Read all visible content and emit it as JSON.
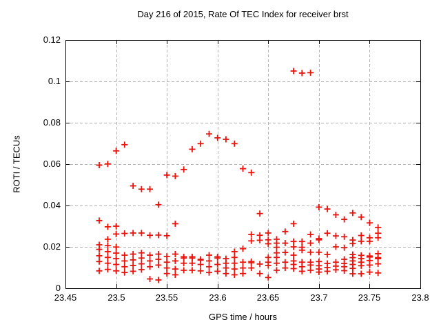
{
  "title": "Day 216 of 2015, Rate Of TEC Index for receiver brst",
  "colors": {
    "marker": "#e8130c",
    "grid": "#b3b3b3",
    "border": "#000000",
    "background": "#ffffff",
    "text": "#000000"
  },
  "chart_data": {
    "type": "scatter",
    "title": "Day 216 of 2015, Rate Of TEC Index for receiver brst",
    "xlabel": "GPS time / hours",
    "ylabel": "ROTI / TECUs",
    "xlim": [
      23.45,
      23.8
    ],
    "ylim": [
      0,
      0.12
    ],
    "xticks": [
      23.45,
      23.5,
      23.55,
      23.6,
      23.65,
      23.7,
      23.75,
      23.8
    ],
    "xtick_labels": [
      "23.45",
      "23.5",
      "23.55",
      "23.6",
      "23.65",
      "23.7",
      "23.75",
      "23.8"
    ],
    "yticks": [
      0,
      0.02,
      0.04,
      0.06,
      0.08,
      0.1,
      0.12
    ],
    "ytick_labels": [
      "0",
      "0.02",
      "0.04",
      "0.06",
      "0.08",
      "0.1",
      "0.12"
    ],
    "grid": true,
    "legend": false,
    "marker": "plus",
    "series_name": "ROTI",
    "points": [
      [
        23.4833,
        0.0595
      ],
      [
        23.4833,
        0.0327
      ],
      [
        23.4833,
        0.021
      ],
      [
        23.4833,
        0.0188
      ],
      [
        23.4833,
        0.0157
      ],
      [
        23.4833,
        0.0129
      ],
      [
        23.4833,
        0.0084
      ],
      [
        23.4917,
        0.0601
      ],
      [
        23.4917,
        0.0297
      ],
      [
        23.4917,
        0.0237
      ],
      [
        23.4917,
        0.0206
      ],
      [
        23.4917,
        0.0177
      ],
      [
        23.4917,
        0.0149
      ],
      [
        23.4917,
        0.0121
      ],
      [
        23.4917,
        0.0091
      ],
      [
        23.5,
        0.0664
      ],
      [
        23.5,
        0.03
      ],
      [
        23.5,
        0.0262
      ],
      [
        23.5,
        0.0199
      ],
      [
        23.5,
        0.017
      ],
      [
        23.5,
        0.0143
      ],
      [
        23.5,
        0.0115
      ],
      [
        23.5,
        0.0084
      ],
      [
        23.5083,
        0.0694
      ],
      [
        23.5083,
        0.0265
      ],
      [
        23.5083,
        0.016
      ],
      [
        23.5083,
        0.0132
      ],
      [
        23.5083,
        0.0104
      ],
      [
        23.5083,
        0.0076
      ],
      [
        23.5167,
        0.0495
      ],
      [
        23.5167,
        0.0267
      ],
      [
        23.5167,
        0.0165
      ],
      [
        23.5167,
        0.0137
      ],
      [
        23.5167,
        0.011
      ],
      [
        23.5167,
        0.0082
      ],
      [
        23.525,
        0.0479
      ],
      [
        23.525,
        0.0267
      ],
      [
        23.525,
        0.0171
      ],
      [
        23.525,
        0.0146
      ],
      [
        23.525,
        0.0118
      ],
      [
        23.525,
        0.009
      ],
      [
        23.5333,
        0.0479
      ],
      [
        23.5333,
        0.0256
      ],
      [
        23.5333,
        0.016
      ],
      [
        23.5333,
        0.0132
      ],
      [
        23.5333,
        0.0104
      ],
      [
        23.5333,
        0.0045
      ],
      [
        23.5417,
        0.0404
      ],
      [
        23.5417,
        0.0257
      ],
      [
        23.5417,
        0.0165
      ],
      [
        23.5417,
        0.014
      ],
      [
        23.5417,
        0.0112
      ],
      [
        23.5417,
        0.004
      ],
      [
        23.55,
        0.0547
      ],
      [
        23.55,
        0.0254
      ],
      [
        23.55,
        0.0154
      ],
      [
        23.55,
        0.0126
      ],
      [
        23.55,
        0.0098
      ],
      [
        23.55,
        0.0071
      ],
      [
        23.5583,
        0.0542
      ],
      [
        23.5583,
        0.0312
      ],
      [
        23.5583,
        0.0165
      ],
      [
        23.5583,
        0.0132
      ],
      [
        23.5583,
        0.0093
      ],
      [
        23.5583,
        0.0065
      ],
      [
        23.5667,
        0.0574
      ],
      [
        23.5667,
        0.0152
      ],
      [
        23.5667,
        0.0146
      ],
      [
        23.5667,
        0.0121
      ],
      [
        23.5667,
        0.0087
      ],
      [
        23.575,
        0.0672
      ],
      [
        23.575,
        0.0152
      ],
      [
        23.575,
        0.0146
      ],
      [
        23.575,
        0.0121
      ],
      [
        23.575,
        0.0087
      ],
      [
        23.5833,
        0.0699
      ],
      [
        23.5833,
        0.014
      ],
      [
        23.5833,
        0.0136
      ],
      [
        23.5833,
        0.0115
      ],
      [
        23.5833,
        0.0084
      ],
      [
        23.5917,
        0.0746
      ],
      [
        23.5917,
        0.016
      ],
      [
        23.5917,
        0.0132
      ],
      [
        23.5917,
        0.0104
      ],
      [
        23.5917,
        0.0076
      ],
      [
        23.6,
        0.0727
      ],
      [
        23.6,
        0.0152
      ],
      [
        23.6,
        0.0146
      ],
      [
        23.6,
        0.0115
      ],
      [
        23.6,
        0.0082
      ],
      [
        23.6083,
        0.072
      ],
      [
        23.6083,
        0.0143
      ],
      [
        23.6083,
        0.0121
      ],
      [
        23.6083,
        0.0098
      ],
      [
        23.6083,
        0.0071
      ],
      [
        23.6167,
        0.0699
      ],
      [
        23.6167,
        0.0177
      ],
      [
        23.6167,
        0.0149
      ],
      [
        23.6167,
        0.0121
      ],
      [
        23.6167,
        0.0093
      ],
      [
        23.6167,
        0.0065
      ],
      [
        23.625,
        0.0578
      ],
      [
        23.625,
        0.0191
      ],
      [
        23.625,
        0.0126
      ],
      [
        23.625,
        0.0098
      ],
      [
        23.625,
        0.0071
      ],
      [
        23.6333,
        0.0559
      ],
      [
        23.6333,
        0.026
      ],
      [
        23.6333,
        0.0229
      ],
      [
        23.6333,
        0.0129
      ],
      [
        23.6333,
        0.0123
      ],
      [
        23.6333,
        0.0098
      ],
      [
        23.6417,
        0.0361
      ],
      [
        23.6417,
        0.0256
      ],
      [
        23.6417,
        0.0232
      ],
      [
        23.6417,
        0.0117
      ],
      [
        23.6417,
        0.0071
      ],
      [
        23.65,
        0.0267
      ],
      [
        23.65,
        0.0234
      ],
      [
        23.65,
        0.0215
      ],
      [
        23.65,
        0.0149
      ],
      [
        23.65,
        0.0126
      ],
      [
        23.65,
        0.011
      ],
      [
        23.65,
        0.0052
      ],
      [
        23.6583,
        0.0237
      ],
      [
        23.6583,
        0.0218
      ],
      [
        23.6583,
        0.0198
      ],
      [
        23.6583,
        0.0171
      ],
      [
        23.6583,
        0.0149
      ],
      [
        23.6583,
        0.0121
      ],
      [
        23.6583,
        0.0087
      ],
      [
        23.6667,
        0.0274
      ],
      [
        23.6667,
        0.0218
      ],
      [
        23.6667,
        0.0173
      ],
      [
        23.6667,
        0.0126
      ],
      [
        23.6667,
        0.0098
      ],
      [
        23.675,
        0.105
      ],
      [
        23.675,
        0.0312
      ],
      [
        23.675,
        0.0226
      ],
      [
        23.675,
        0.02
      ],
      [
        23.675,
        0.016
      ],
      [
        23.675,
        0.0132
      ],
      [
        23.675,
        0.0115
      ],
      [
        23.675,
        0.0095
      ],
      [
        23.6833,
        0.104
      ],
      [
        23.6833,
        0.0226
      ],
      [
        23.6833,
        0.0198
      ],
      [
        23.6833,
        0.0184
      ],
      [
        23.6833,
        0.0126
      ],
      [
        23.6833,
        0.0104
      ],
      [
        23.6833,
        0.0082
      ],
      [
        23.6917,
        0.1042
      ],
      [
        23.6917,
        0.026
      ],
      [
        23.6917,
        0.0218
      ],
      [
        23.6917,
        0.0174
      ],
      [
        23.6917,
        0.0126
      ],
      [
        23.6917,
        0.0112
      ],
      [
        23.6917,
        0.0087
      ],
      [
        23.7,
        0.0392
      ],
      [
        23.7,
        0.024
      ],
      [
        23.7,
        0.0234
      ],
      [
        23.7,
        0.0174
      ],
      [
        23.7,
        0.0129
      ],
      [
        23.7,
        0.0109
      ],
      [
        23.7,
        0.0093
      ],
      [
        23.7,
        0.0078
      ],
      [
        23.7083,
        0.0383
      ],
      [
        23.7083,
        0.0266
      ],
      [
        23.7083,
        0.0163
      ],
      [
        23.7083,
        0.012
      ],
      [
        23.7083,
        0.01
      ],
      [
        23.7083,
        0.0082
      ],
      [
        23.7167,
        0.0355
      ],
      [
        23.7167,
        0.0253
      ],
      [
        23.7167,
        0.02
      ],
      [
        23.7167,
        0.0126
      ],
      [
        23.7167,
        0.0107
      ],
      [
        23.7167,
        0.0089
      ],
      [
        23.725,
        0.0333
      ],
      [
        23.725,
        0.0249
      ],
      [
        23.725,
        0.0196
      ],
      [
        23.725,
        0.014
      ],
      [
        23.725,
        0.012
      ],
      [
        23.725,
        0.0104
      ],
      [
        23.725,
        0.0085
      ],
      [
        23.7333,
        0.0364
      ],
      [
        23.7333,
        0.0233
      ],
      [
        23.7333,
        0.0216
      ],
      [
        23.7333,
        0.0163
      ],
      [
        23.7333,
        0.0148
      ],
      [
        23.7333,
        0.0132
      ],
      [
        23.7333,
        0.0115
      ],
      [
        23.7333,
        0.0096
      ],
      [
        23.7333,
        0.007
      ],
      [
        23.7417,
        0.0344
      ],
      [
        23.7417,
        0.0255
      ],
      [
        23.7417,
        0.0227
      ],
      [
        23.7417,
        0.0159
      ],
      [
        23.7417,
        0.0143
      ],
      [
        23.7417,
        0.0126
      ],
      [
        23.7417,
        0.0109
      ],
      [
        23.7417,
        0.007
      ],
      [
        23.75,
        0.0316
      ],
      [
        23.75,
        0.0244
      ],
      [
        23.75,
        0.0227
      ],
      [
        23.75,
        0.0156
      ],
      [
        23.75,
        0.0151
      ],
      [
        23.75,
        0.0134
      ],
      [
        23.75,
        0.0112
      ],
      [
        23.75,
        0.0078
      ],
      [
        23.7583,
        0.0294
      ],
      [
        23.7583,
        0.0266
      ],
      [
        23.7583,
        0.0244
      ],
      [
        23.7583,
        0.0167
      ],
      [
        23.7583,
        0.0148
      ],
      [
        23.7583,
        0.0143
      ],
      [
        23.7583,
        0.0118
      ],
      [
        23.7583,
        0.0074
      ]
    ]
  }
}
